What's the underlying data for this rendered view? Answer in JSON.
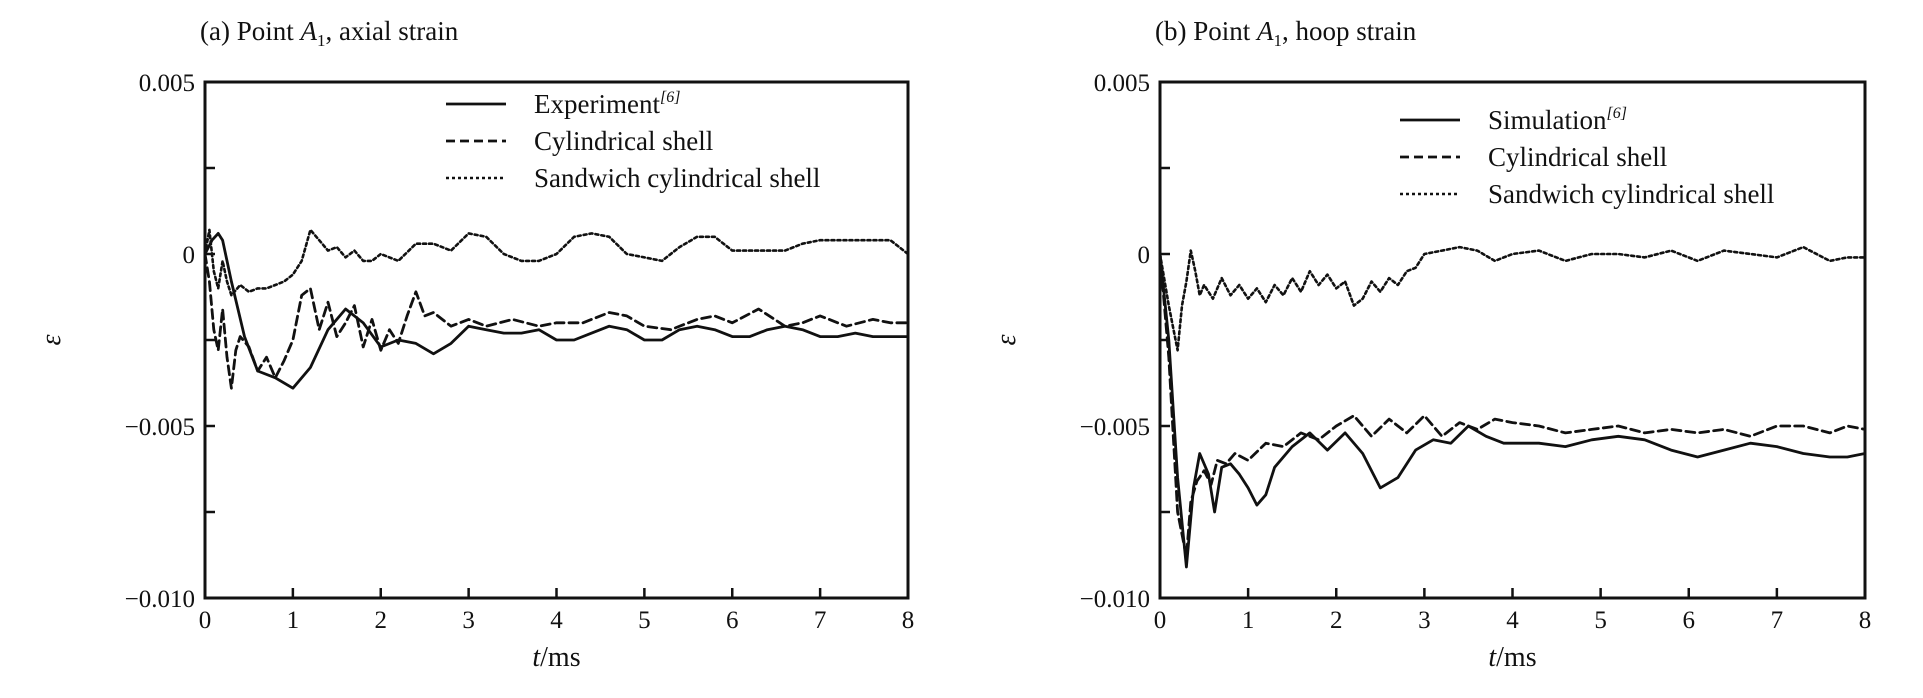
{
  "chart_data": [
    {
      "type": "line",
      "title_prefix": "(a) Point ",
      "title_var": "A",
      "title_sub": "1",
      "title_suffix": ",  axial strain",
      "xlabel_var": "t",
      "xlabel_unit": "/ms",
      "ylabel": "ε",
      "xlim": [
        0,
        8
      ],
      "ylim": [
        -0.01,
        0.005
      ],
      "xticks": [
        0,
        1,
        2,
        3,
        4,
        5,
        6,
        7,
        8
      ],
      "xtick_labels": [
        "0",
        "1",
        "2",
        "3",
        "4",
        "5",
        "6",
        "7",
        "8"
      ],
      "yticks": [
        0.005,
        0,
        -0.005,
        -0.01
      ],
      "ytick_labels": [
        "0.005",
        "0",
        "−0.005",
        "−0.010"
      ],
      "legend_position": "top-right",
      "series": [
        {
          "name": "Experiment",
          "name_ref": "[6]",
          "style": "solid",
          "x": [
            0,
            0.08,
            0.15,
            0.2,
            0.3,
            0.45,
            0.6,
            0.8,
            1.0,
            1.2,
            1.4,
            1.6,
            1.8,
            2.0,
            2.2,
            2.4,
            2.6,
            2.8,
            3.0,
            3.2,
            3.4,
            3.6,
            3.8,
            4.0,
            4.2,
            4.4,
            4.6,
            4.8,
            5.0,
            5.2,
            5.4,
            5.6,
            5.8,
            6.0,
            6.2,
            6.4,
            6.6,
            6.8,
            7.0,
            7.2,
            7.4,
            7.6,
            7.8,
            8.0
          ],
          "y": [
            0,
            0.0004,
            0.0006,
            0.0004,
            -0.0008,
            -0.0024,
            -0.0034,
            -0.0036,
            -0.0039,
            -0.0033,
            -0.0022,
            -0.0016,
            -0.002,
            -0.0027,
            -0.0025,
            -0.0026,
            -0.0029,
            -0.0026,
            -0.0021,
            -0.0022,
            -0.0023,
            -0.0023,
            -0.0022,
            -0.0025,
            -0.0025,
            -0.0023,
            -0.0021,
            -0.0022,
            -0.0025,
            -0.0025,
            -0.0022,
            -0.0021,
            -0.0022,
            -0.0024,
            -0.0024,
            -0.0022,
            -0.0021,
            -0.0022,
            -0.0024,
            -0.0024,
            -0.0023,
            -0.0024,
            -0.0024,
            -0.0024
          ]
        },
        {
          "name": "Cylindrical shell",
          "name_ref": "",
          "style": "dashed",
          "x": [
            0,
            0.05,
            0.1,
            0.15,
            0.2,
            0.25,
            0.3,
            0.35,
            0.4,
            0.5,
            0.6,
            0.7,
            0.8,
            0.9,
            1.0,
            1.1,
            1.2,
            1.3,
            1.4,
            1.5,
            1.6,
            1.7,
            1.8,
            1.9,
            2.0,
            2.1,
            2.2,
            2.3,
            2.4,
            2.5,
            2.6,
            2.8,
            3.0,
            3.2,
            3.5,
            3.8,
            4.0,
            4.3,
            4.6,
            4.8,
            5.0,
            5.3,
            5.6,
            5.8,
            6.0,
            6.3,
            6.6,
            6.8,
            7.0,
            7.3,
            7.6,
            7.8,
            8.0
          ],
          "y": [
            0,
            -0.0008,
            -0.0022,
            -0.0028,
            -0.0016,
            -0.003,
            -0.0039,
            -0.0028,
            -0.0024,
            -0.0027,
            -0.0034,
            -0.003,
            -0.0036,
            -0.0031,
            -0.0025,
            -0.0012,
            -0.001,
            -0.0022,
            -0.0014,
            -0.0024,
            -0.002,
            -0.0015,
            -0.0027,
            -0.0019,
            -0.0028,
            -0.0022,
            -0.0026,
            -0.0018,
            -0.0011,
            -0.0018,
            -0.0017,
            -0.0021,
            -0.0019,
            -0.0021,
            -0.0019,
            -0.0021,
            -0.002,
            -0.002,
            -0.0017,
            -0.0018,
            -0.0021,
            -0.0022,
            -0.0019,
            -0.0018,
            -0.002,
            -0.0016,
            -0.0021,
            -0.002,
            -0.0018,
            -0.0021,
            -0.0019,
            -0.002,
            -0.002
          ]
        },
        {
          "name": "Sandwich cylindrical shell",
          "name_ref": "",
          "style": "dotted",
          "x": [
            0,
            0.05,
            0.1,
            0.15,
            0.2,
            0.25,
            0.3,
            0.4,
            0.5,
            0.6,
            0.7,
            0.8,
            0.9,
            1.0,
            1.1,
            1.2,
            1.3,
            1.4,
            1.5,
            1.6,
            1.7,
            1.8,
            1.9,
            2.0,
            2.2,
            2.4,
            2.6,
            2.8,
            3.0,
            3.2,
            3.4,
            3.6,
            3.8,
            4.0,
            4.2,
            4.4,
            4.6,
            4.8,
            5.0,
            5.2,
            5.4,
            5.6,
            5.8,
            6.0,
            6.2,
            6.4,
            6.6,
            6.8,
            7.0,
            7.2,
            7.4,
            7.6,
            7.8,
            8.0
          ],
          "y": [
            0,
            0.0007,
            -0.0005,
            -0.001,
            -0.0002,
            -0.0008,
            -0.0012,
            -0.0009,
            -0.0011,
            -0.001,
            -0.001,
            -0.0009,
            -0.0008,
            -0.0006,
            -0.0002,
            0.0007,
            0.0004,
            0.0001,
            0.0002,
            -0.0001,
            0.0001,
            -0.0002,
            -0.0002,
            0.0,
            -0.0002,
            0.0003,
            0.0003,
            0.0001,
            0.0006,
            0.0005,
            0.0,
            -0.0002,
            -0.0002,
            0.0,
            0.0005,
            0.0006,
            0.0005,
            0.0,
            -0.0001,
            -0.0002,
            0.0002,
            0.0005,
            0.0005,
            0.0001,
            0.0001,
            0.0001,
            0.0001,
            0.0003,
            0.0004,
            0.0004,
            0.0004,
            0.0004,
            0.0004,
            0.0
          ]
        }
      ]
    },
    {
      "type": "line",
      "title_prefix": "(b) Point ",
      "title_var": "A",
      "title_sub": "1",
      "title_suffix": ", hoop strain",
      "xlabel_var": "t",
      "xlabel_unit": "/ms",
      "ylabel": "ε",
      "xlim": [
        0,
        8
      ],
      "ylim": [
        -0.01,
        0.005
      ],
      "xticks": [
        0,
        1,
        2,
        3,
        4,
        5,
        6,
        7,
        8
      ],
      "xtick_labels": [
        "0",
        "1",
        "2",
        "3",
        "4",
        "5",
        "6",
        "7",
        "8"
      ],
      "yticks": [
        0.005,
        0,
        -0.005,
        -0.01
      ],
      "ytick_labels": [
        "0.005",
        "0",
        "−0.005",
        "−0.010"
      ],
      "legend_position": "top-right",
      "series": [
        {
          "name": "Simulation",
          "name_ref": "[6]",
          "style": "solid",
          "x": [
            0,
            0.1,
            0.2,
            0.3,
            0.38,
            0.45,
            0.55,
            0.62,
            0.7,
            0.8,
            0.9,
            1.0,
            1.1,
            1.2,
            1.3,
            1.5,
            1.7,
            1.9,
            2.1,
            2.3,
            2.5,
            2.7,
            2.9,
            3.1,
            3.3,
            3.5,
            3.7,
            3.9,
            4.1,
            4.3,
            4.6,
            4.9,
            5.2,
            5.5,
            5.8,
            6.1,
            6.4,
            6.7,
            7.0,
            7.3,
            7.6,
            7.8,
            8.0
          ],
          "y": [
            0,
            -0.0025,
            -0.0065,
            -0.0091,
            -0.0068,
            -0.0058,
            -0.0064,
            -0.0075,
            -0.0062,
            -0.0061,
            -0.0064,
            -0.0068,
            -0.0073,
            -0.007,
            -0.0062,
            -0.0056,
            -0.0052,
            -0.0057,
            -0.0052,
            -0.0058,
            -0.0068,
            -0.0065,
            -0.0057,
            -0.0054,
            -0.0055,
            -0.005,
            -0.0053,
            -0.0055,
            -0.0055,
            -0.0055,
            -0.0056,
            -0.0054,
            -0.0053,
            -0.0054,
            -0.0057,
            -0.0059,
            -0.0057,
            -0.0055,
            -0.0056,
            -0.0058,
            -0.0059,
            -0.0059,
            -0.0058
          ]
        },
        {
          "name": "Cylindrical shell",
          "name_ref": "",
          "style": "dashed",
          "x": [
            0,
            0.1,
            0.2,
            0.3,
            0.35,
            0.42,
            0.5,
            0.58,
            0.65,
            0.75,
            0.85,
            1.0,
            1.2,
            1.4,
            1.6,
            1.8,
            2.0,
            2.2,
            2.4,
            2.6,
            2.8,
            3.0,
            3.2,
            3.4,
            3.6,
            3.8,
            4.0,
            4.3,
            4.6,
            4.9,
            5.2,
            5.5,
            5.8,
            6.1,
            6.4,
            6.7,
            7.0,
            7.3,
            7.6,
            7.8,
            8.0
          ],
          "y": [
            0,
            -0.003,
            -0.0075,
            -0.0088,
            -0.0072,
            -0.0066,
            -0.0063,
            -0.0067,
            -0.006,
            -0.0061,
            -0.0058,
            -0.006,
            -0.0055,
            -0.0056,
            -0.0052,
            -0.0054,
            -0.005,
            -0.0047,
            -0.0053,
            -0.0048,
            -0.0052,
            -0.0047,
            -0.0053,
            -0.0049,
            -0.0051,
            -0.0048,
            -0.0049,
            -0.005,
            -0.0052,
            -0.0051,
            -0.005,
            -0.0052,
            -0.0051,
            -0.0052,
            -0.0051,
            -0.0053,
            -0.005,
            -0.005,
            -0.0052,
            -0.005,
            -0.0051
          ]
        },
        {
          "name": "Sandwich cylindrical shell",
          "name_ref": "",
          "style": "dotted",
          "x": [
            0,
            0.1,
            0.2,
            0.25,
            0.3,
            0.35,
            0.4,
            0.45,
            0.5,
            0.6,
            0.7,
            0.8,
            0.9,
            1.0,
            1.1,
            1.2,
            1.3,
            1.4,
            1.5,
            1.6,
            1.7,
            1.8,
            1.9,
            2.0,
            2.1,
            2.2,
            2.3,
            2.4,
            2.5,
            2.6,
            2.7,
            2.8,
            2.9,
            3.0,
            3.2,
            3.4,
            3.6,
            3.8,
            4.0,
            4.3,
            4.6,
            4.9,
            5.2,
            5.5,
            5.8,
            6.1,
            6.4,
            6.7,
            7.0,
            7.3,
            7.6,
            7.8,
            8.0
          ],
          "y": [
            0,
            -0.0015,
            -0.0028,
            -0.0015,
            -0.0008,
            0.0001,
            -0.0005,
            -0.0012,
            -0.0009,
            -0.0013,
            -0.0007,
            -0.0012,
            -0.0009,
            -0.0013,
            -0.001,
            -0.0014,
            -0.0009,
            -0.0012,
            -0.0007,
            -0.0011,
            -0.0005,
            -0.0009,
            -0.0006,
            -0.001,
            -0.0008,
            -0.0015,
            -0.0013,
            -0.0008,
            -0.0011,
            -0.0007,
            -0.0009,
            -0.0005,
            -0.0004,
            0.0,
            0.0001,
            0.0002,
            0.0001,
            -0.0002,
            0.0,
            0.0001,
            -0.0002,
            0.0,
            0.0,
            -0.0001,
            0.0001,
            -0.0002,
            0.0001,
            0.0,
            -0.0001,
            0.0002,
            -0.0002,
            -0.0001,
            -0.0001
          ]
        }
      ]
    }
  ]
}
